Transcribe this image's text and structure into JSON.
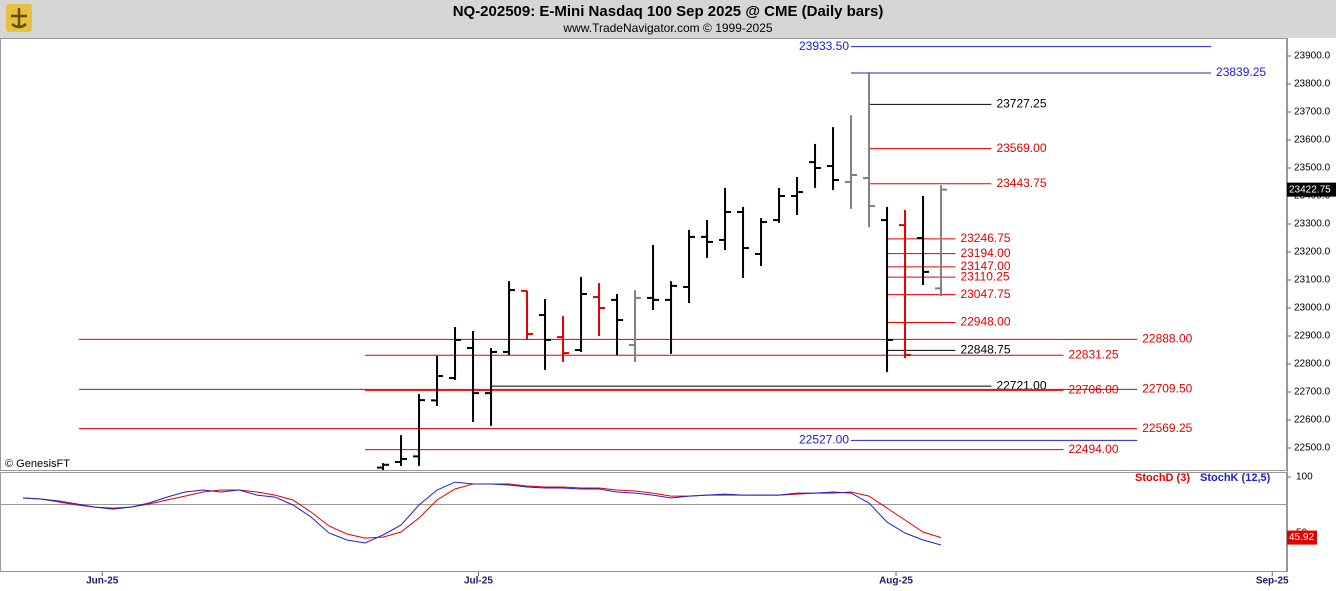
{
  "header": {
    "title": "NQ-202509:  E-Mini Nasdaq 100 Sep 2025 @ CME  (Daily bars)",
    "subtitle": "www.TradeNavigator.com © 1999-2025"
  },
  "chart_data": [
    {
      "type": "ohlc",
      "watermark": "© GenesisFT",
      "xlim": [
        -21.28,
        50.22
      ],
      "xticks": [
        {
          "value": -15.6,
          "label": "Jun-25"
        },
        {
          "value": 5.3,
          "label": "Jul-25"
        },
        {
          "value": 28.5,
          "label": "Aug-25"
        },
        {
          "value": 49.4,
          "label": "Sep-25"
        }
      ],
      "ylim": [
        22421.4,
        23964.3
      ],
      "yticks": [
        {
          "value": 22500,
          "label": "22500.0"
        },
        {
          "value": 22600,
          "label": "22600.0"
        },
        {
          "value": 22700,
          "label": "22700.0"
        },
        {
          "value": 22800,
          "label": "22800.0"
        },
        {
          "value": 22900,
          "label": "22900.0"
        },
        {
          "value": 23000,
          "label": "23000.0"
        },
        {
          "value": 23100,
          "label": "23100.0"
        },
        {
          "value": 23200,
          "label": "23200.0"
        },
        {
          "value": 23300,
          "label": "23300.0"
        },
        {
          "value": 23400,
          "label": "23400.0"
        },
        {
          "value": 23500,
          "label": "23500.0"
        },
        {
          "value": 23600,
          "label": "23600.0"
        },
        {
          "value": 23700,
          "label": "23700.0"
        },
        {
          "value": 23800,
          "label": "23800.0"
        },
        {
          "value": 23900,
          "label": "23900.0"
        }
      ],
      "x": [
        0,
        1,
        2,
        3,
        4,
        5,
        6,
        7,
        8,
        9,
        10,
        11,
        12,
        13,
        14,
        15,
        16,
        17,
        18,
        19,
        20,
        21,
        22,
        23,
        24,
        25,
        26,
        27,
        28,
        29,
        30,
        31
      ],
      "open": [
        22430,
        22450,
        22470,
        22670,
        22750,
        22857,
        22696,
        22843,
        23061,
        22975,
        22896,
        22850,
        23039,
        23029,
        22868,
        23036,
        23029,
        23075,
        23254,
        23243,
        23343,
        23193,
        23314,
        23400,
        23521,
        23507,
        23450,
        23464,
        23314,
        23296,
        23250,
        23070
      ],
      "high": [
        22446,
        22546,
        22693,
        22829,
        22932,
        22918,
        22857,
        23096,
        23061,
        23032,
        22971,
        23111,
        23089,
        23050,
        23064,
        23225,
        23096,
        23279,
        23314,
        23429,
        23361,
        23321,
        23429,
        23468,
        23586,
        23646,
        23689,
        23843,
        23361,
        23350,
        23400,
        23439
      ],
      "low": [
        22400,
        22436,
        22436,
        22650,
        22743,
        22593,
        22579,
        22832,
        22886,
        22779,
        22807,
        22843,
        22900,
        22832,
        22807,
        22993,
        22836,
        23018,
        23179,
        23207,
        23107,
        23150,
        23304,
        23332,
        23429,
        23421,
        23354,
        23289,
        22771,
        22821,
        23082,
        23043
      ],
      "close": [
        22440,
        22461,
        22671,
        22757,
        22886,
        22696,
        22843,
        23064,
        22907,
        22886,
        22839,
        23050,
        23000,
        22957,
        23036,
        23029,
        23079,
        23254,
        23236,
        23343,
        23214,
        23307,
        23400,
        23414,
        23500,
        23457,
        23475,
        23364,
        22886,
        22832,
        23129,
        23422.75
      ],
      "bar_colors": [
        "#000000",
        "#000000",
        "#000000",
        "#000000",
        "#000000",
        "#000000",
        "#000000",
        "#000000",
        "#e00000",
        "#000000",
        "#e00000",
        "#000000",
        "#e00000",
        "#000000",
        "#808080",
        "#000000",
        "#000000",
        "#000000",
        "#000000",
        "#000000",
        "#000000",
        "#000000",
        "#000000",
        "#000000",
        "#000000",
        "#000000",
        "#808080",
        "#808080",
        "#000000",
        "#e00000",
        "#000000",
        "#808080"
      ],
      "last": {
        "value": 23422.75,
        "label": "23422.75"
      },
      "levels": [
        {
          "value": 23933.5,
          "label": "23933.50",
          "color": "#2020d0",
          "span": [
            26,
            46
          ],
          "label_side": "left"
        },
        {
          "value": 23839.25,
          "label": "23839.25",
          "color": "#2020d0",
          "span": [
            26,
            46
          ],
          "label_side": "right"
        },
        {
          "value": 23727.25,
          "label": "23727.25",
          "color": "#000000",
          "span": [
            27,
            33.8
          ],
          "label_side": "right"
        },
        {
          "value": 23569,
          "label": "23569.00",
          "color": "#e00000",
          "span": [
            27,
            33.8
          ],
          "label_side": "right"
        },
        {
          "value": 23443.75,
          "label": "23443.75",
          "color": "#e00000",
          "span": [
            27,
            33.8
          ],
          "label_side": "right"
        },
        {
          "value": 23246.75,
          "label": "23246.75",
          "color": "#e00000",
          "span": [
            28,
            31.8
          ],
          "label_side": "right"
        },
        {
          "value": 23194,
          "label": "23194.00",
          "color": "#e00000",
          "span": [
            28,
            31.8
          ],
          "label_side": "right"
        },
        {
          "value": 23147,
          "label": "23147.00",
          "color": "#e00000",
          "span": [
            28,
            31.8
          ],
          "label_side": "right"
        },
        {
          "value": 23110.25,
          "label": "23110.25",
          "color": "#e00000",
          "span": [
            28,
            31.8
          ],
          "label_side": "right"
        },
        {
          "value": 23047.75,
          "label": "23047.75",
          "color": "#e00000",
          "span": [
            28,
            31.8
          ],
          "label_side": "right"
        },
        {
          "value": 22948,
          "label": "22948.00",
          "color": "#e00000",
          "span": [
            28,
            31.8
          ],
          "label_side": "right"
        },
        {
          "value": 22888,
          "label": "22888.00",
          "color": "#e00000",
          "span": [
            -16.9,
            41.9
          ],
          "label_side": "right"
        },
        {
          "value": 22848.75,
          "label": "22848.75",
          "color": "#000000",
          "span": [
            28,
            31.8
          ],
          "label_side": "right"
        },
        {
          "value": 22831.25,
          "label": "22831.25",
          "color": "#e00000",
          "span": [
            -1,
            37.8
          ],
          "label_side": "right"
        },
        {
          "value": 22721,
          "label": "22721.00",
          "color": "#000000",
          "span": [
            6,
            33.8
          ],
          "label_side": "right"
        },
        {
          "value": 22709.5,
          "label": "22709.50",
          "color": "#e00000",
          "span": [
            -16.9,
            41.9
          ],
          "label_side": "right"
        },
        {
          "value": 22706,
          "label": "22706.00",
          "color": "#e00000",
          "span": [
            -1,
            37.8
          ],
          "label_side": "right"
        },
        {
          "value": 22569.25,
          "label": "22569.25",
          "color": "#e00000",
          "span": [
            -16.9,
            41.9
          ],
          "label_side": "right"
        },
        {
          "value": 22527,
          "label": "22527.00",
          "color": "#2020d0",
          "span": [
            26,
            41.9
          ],
          "label_side": "left"
        },
        {
          "value": 22494,
          "label": "22494.00",
          "color": "#e00000",
          "span": [
            -1,
            37.8
          ],
          "label_side": "right"
        }
      ]
    },
    {
      "type": "line",
      "ylim": [
        15.2,
        104.5
      ],
      "yticks": [
        50,
        100
      ],
      "x": [
        -20,
        -19,
        -18,
        -17,
        -16,
        -15,
        -14,
        -13,
        -12,
        -11,
        -10,
        -9,
        -8,
        -7,
        -6,
        -5,
        -4,
        -3,
        -2,
        -1,
        0,
        1,
        2,
        3,
        4,
        5,
        6,
        7,
        8,
        9,
        10,
        11,
        12,
        13,
        14,
        15,
        16,
        17,
        18,
        19,
        20,
        21,
        22,
        23,
        24,
        25,
        26,
        27,
        28,
        29,
        30,
        31
      ],
      "series": [
        {
          "name": "StochD (3)",
          "color": "#e00000",
          "values": [
            81.3,
            80.4,
            77.7,
            75.0,
            73.2,
            72.3,
            73.2,
            75.9,
            79.5,
            83.0,
            86.6,
            88.4,
            88.4,
            86.6,
            83.9,
            79.5,
            68.8,
            56.3,
            49.1,
            45.5,
            46.4,
            50.9,
            63.4,
            79.5,
            89.3,
            93.8,
            93.8,
            93.8,
            92.0,
            91.1,
            91.1,
            90.2,
            90.2,
            88.4,
            87.5,
            85.7,
            83.0,
            83.0,
            83.9,
            83.9,
            83.9,
            83.9,
            83.9,
            84.8,
            85.7,
            85.7,
            86.6,
            83.0,
            72.3,
            61.6,
            50.9,
            45.92
          ]
        },
        {
          "name": "StochK (12,5)",
          "color": "#2020d0",
          "values": [
            81.3,
            80.4,
            78.6,
            75.9,
            73.2,
            71.4,
            73.2,
            76.8,
            82.1,
            86.6,
            88.4,
            86.6,
            88.4,
            83.9,
            82.1,
            75.0,
            64.3,
            50.0,
            43.8,
            41.1,
            48.2,
            57.1,
            75.0,
            88.4,
            95.5,
            93.8,
            93.8,
            92.9,
            91.1,
            90.2,
            90.2,
            89.3,
            89.3,
            86.6,
            85.7,
            83.9,
            81.3,
            83.0,
            83.9,
            84.8,
            83.9,
            83.9,
            83.9,
            85.7,
            85.7,
            86.6,
            85.7,
            76.8,
            59.8,
            50.0,
            43.8,
            39.3
          ]
        }
      ]
    }
  ]
}
